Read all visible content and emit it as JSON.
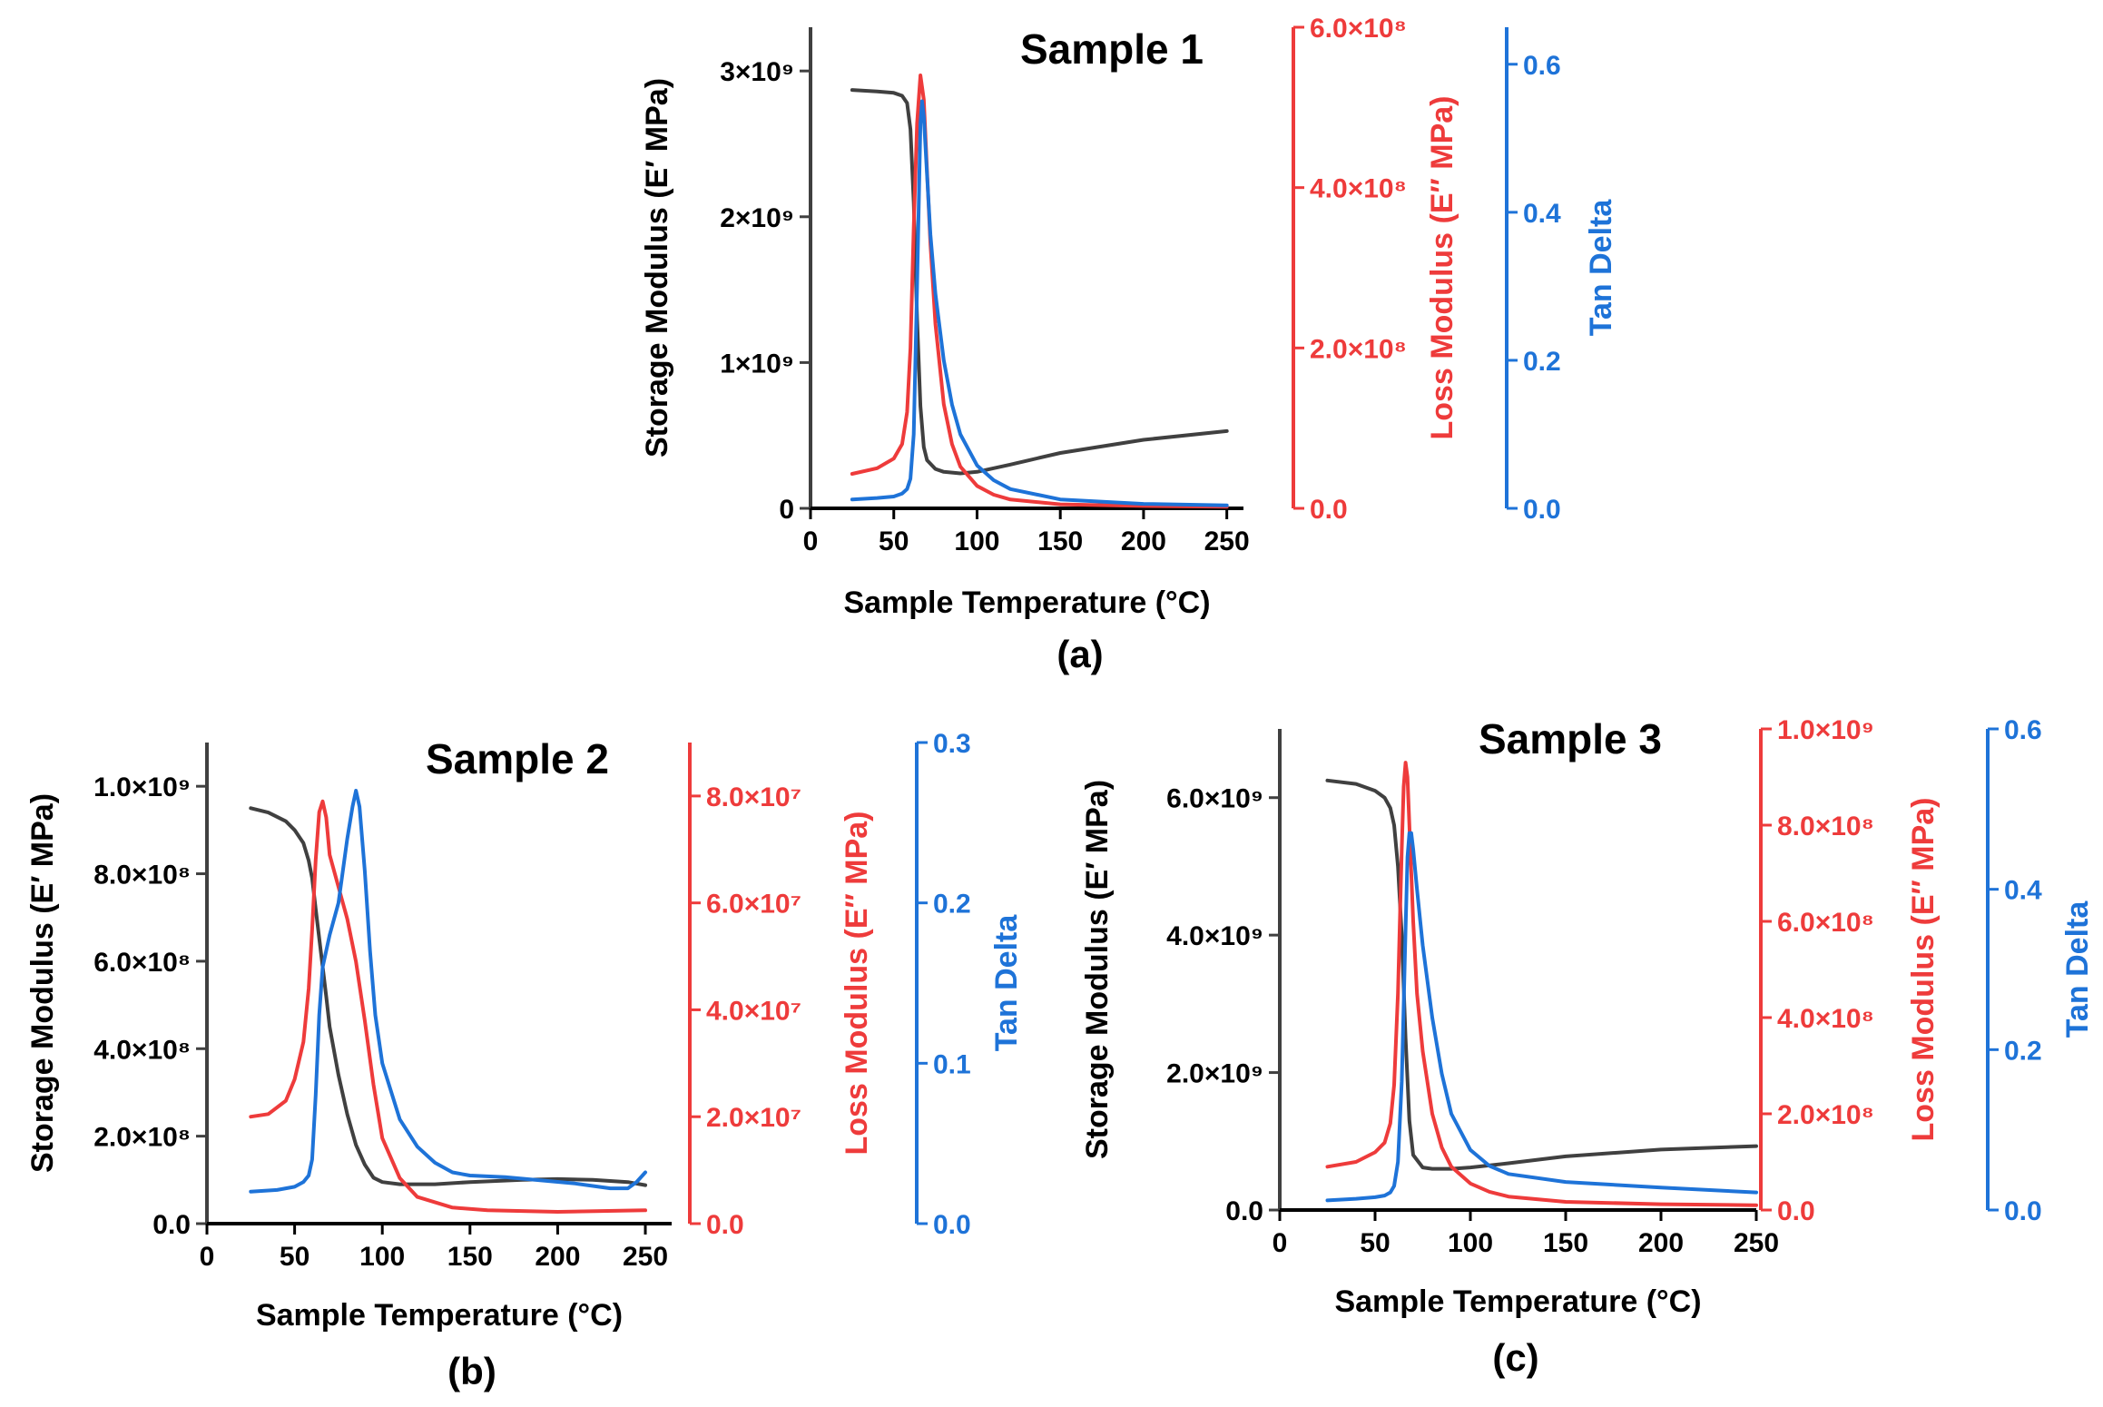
{
  "colors": {
    "storage": "#404040",
    "loss": "#ee3b3b",
    "tan": "#1e73d8",
    "axis_left": "#404040"
  },
  "chart_data": [
    {
      "type": "line",
      "title": "Sample 1",
      "panel_label": "(a)",
      "xlabel": "Sample Temperature (°C)",
      "xlim": [
        0,
        260
      ],
      "xticks": [
        "0",
        "50",
        "100",
        "150",
        "200",
        "250"
      ],
      "y_left": {
        "label": "Storage Modulus (E′ MPa)",
        "lim": [
          0,
          3300000000.0
        ],
        "ticks": [
          0,
          1000000000.0,
          2000000000.0,
          3000000000.0
        ],
        "tick_labels": [
          "0",
          "1×10⁹",
          "2×10⁹",
          "3×10⁹"
        ]
      },
      "y_right1": {
        "label": "Loss Modulus (E″ MPa)",
        "lim": [
          0,
          600000000.0
        ],
        "ticks": [
          0,
          200000000.0,
          400000000.0,
          600000000.0
        ],
        "tick_labels": [
          "0.0",
          "2.0×10⁸",
          "4.0×10⁸",
          "6.0×10⁸"
        ]
      },
      "y_right2": {
        "label": "Tan Delta",
        "lim": [
          0,
          0.65
        ],
        "ticks": [
          0,
          0.2,
          0.4,
          0.6
        ],
        "tick_labels": [
          "0.0",
          "0.2",
          "0.4",
          "0.6"
        ]
      },
      "series": [
        {
          "axis": "left",
          "color": "#404040",
          "x": [
            25,
            40,
            50,
            55,
            58,
            60,
            62,
            64,
            66,
            68,
            70,
            75,
            80,
            90,
            100,
            120,
            150,
            200,
            250
          ],
          "y": [
            2870000000.0,
            2860000000.0,
            2850000000.0,
            2830000000.0,
            2780000000.0,
            2600000000.0,
            2100000000.0,
            1300000000.0,
            700000000.0,
            420000000.0,
            330000000.0,
            270000000.0,
            250000000.0,
            240000000.0,
            250000000.0,
            300000000.0,
            380000000.0,
            470000000.0,
            530000000.0
          ]
        },
        {
          "axis": "right1",
          "color": "#ee3b3b",
          "x": [
            25,
            40,
            50,
            55,
            58,
            60,
            62,
            64,
            66,
            68,
            70,
            72,
            75,
            80,
            85,
            90,
            100,
            110,
            120,
            150,
            200,
            250
          ],
          "y": [
            43000000.0,
            50000000.0,
            62000000.0,
            80000000.0,
            120000000.0,
            200000000.0,
            350000000.0,
            480000000.0,
            540000000.0,
            510000000.0,
            420000000.0,
            330000000.0,
            230000000.0,
            130000000.0,
            80000000.0,
            52000000.0,
            28000000.0,
            17000000.0,
            11000000.0,
            5000000.0,
            3000000.0,
            2000000.0
          ]
        },
        {
          "axis": "right2",
          "color": "#1e73d8",
          "x": [
            25,
            40,
            50,
            55,
            58,
            60,
            62,
            64,
            66,
            67,
            68,
            70,
            72,
            75,
            80,
            85,
            90,
            100,
            110,
            120,
            150,
            200,
            250
          ],
          "y": [
            0.012,
            0.014,
            0.016,
            0.02,
            0.026,
            0.04,
            0.1,
            0.3,
            0.52,
            0.55,
            0.53,
            0.45,
            0.37,
            0.29,
            0.2,
            0.14,
            0.1,
            0.058,
            0.038,
            0.026,
            0.012,
            0.006,
            0.004
          ]
        }
      ]
    },
    {
      "type": "line",
      "title": "Sample 2",
      "panel_label": "(b)",
      "xlabel": "Sample Temperature (°C)",
      "xlim": [
        0,
        265
      ],
      "xticks": [
        "0",
        "50",
        "100",
        "150",
        "200",
        "250"
      ],
      "y_left": {
        "label": "Storage Modulus (E′ MPa)",
        "lim": [
          0,
          1100000000.0
        ],
        "ticks": [
          0,
          200000000.0,
          400000000.0,
          600000000.0,
          800000000.0,
          1000000000.0
        ],
        "tick_labels": [
          "0.0",
          "2.0×10⁸",
          "4.0×10⁸",
          "6.0×10⁸",
          "8.0×10⁸",
          "1.0×10⁹"
        ]
      },
      "y_right1": {
        "label": "Loss Modulus (E″ MPa)",
        "lim": [
          0,
          90000000.0
        ],
        "ticks": [
          0,
          20000000.0,
          40000000.0,
          60000000.0,
          80000000.0
        ],
        "tick_labels": [
          "0.0",
          "2.0×10⁷",
          "4.0×10⁷",
          "6.0×10⁷",
          "8.0×10⁷"
        ]
      },
      "y_right2": {
        "label": "Tan Delta",
        "lim": [
          0,
          0.3
        ],
        "ticks": [
          0,
          0.1,
          0.2,
          0.3
        ],
        "tick_labels": [
          "0.0",
          "0.1",
          "0.2",
          "0.3"
        ]
      },
      "series": [
        {
          "axis": "left",
          "color": "#404040",
          "x": [
            25,
            35,
            45,
            50,
            55,
            58,
            60,
            62,
            65,
            68,
            70,
            75,
            80,
            85,
            90,
            95,
            100,
            110,
            130,
            150,
            180,
            200,
            220,
            240,
            250
          ],
          "y": [
            950000000.0,
            940000000.0,
            920000000.0,
            900000000.0,
            870000000.0,
            830000000.0,
            790000000.0,
            720000000.0,
            620000000.0,
            520000000.0,
            450000000.0,
            340000000.0,
            250000000.0,
            180000000.0,
            135000000.0,
            105000000.0,
            95000000.0,
            90000000.0,
            90000000.0,
            95000000.0,
            100000000.0,
            102000000.0,
            100000000.0,
            95000000.0,
            88000000.0
          ]
        },
        {
          "axis": "right1",
          "color": "#ee3b3b",
          "x": [
            25,
            35,
            45,
            50,
            55,
            58,
            60,
            62,
            64,
            66,
            68,
            70,
            75,
            80,
            85,
            90,
            95,
            100,
            110,
            120,
            140,
            160,
            200,
            250
          ],
          "y": [
            20000000.0,
            20500000.0,
            23000000.0,
            27000000.0,
            34000000.0,
            44000000.0,
            55000000.0,
            68000000.0,
            77000000.0,
            79000000.0,
            76000000.0,
            69000000.0,
            63000000.0,
            57000000.0,
            49000000.0,
            38000000.0,
            26000000.0,
            16000000.0,
            8500000.0,
            5000000.0,
            3000000.0,
            2500000.0,
            2200000.0,
            2500000.0
          ]
        },
        {
          "axis": "right2",
          "color": "#1e73d8",
          "x": [
            25,
            40,
            50,
            55,
            58,
            60,
            62,
            64,
            66,
            70,
            75,
            80,
            83,
            85,
            87,
            90,
            93,
            96,
            100,
            110,
            120,
            130,
            140,
            150,
            170,
            190,
            210,
            230,
            240,
            245,
            250
          ],
          "y": [
            0.02,
            0.021,
            0.023,
            0.026,
            0.03,
            0.04,
            0.08,
            0.13,
            0.16,
            0.18,
            0.2,
            0.24,
            0.26,
            0.27,
            0.26,
            0.22,
            0.17,
            0.13,
            0.1,
            0.065,
            0.048,
            0.038,
            0.032,
            0.03,
            0.029,
            0.027,
            0.025,
            0.022,
            0.022,
            0.026,
            0.032
          ]
        }
      ]
    },
    {
      "type": "line",
      "title": "Sample 3",
      "panel_label": "(c)",
      "xlabel": "Sample Temperature (°C)",
      "xlim": [
        0,
        250
      ],
      "xticks": [
        "0",
        "50",
        "100",
        "150",
        "200",
        "250"
      ],
      "y_left": {
        "label": "Storage Modulus (E′ MPa)",
        "lim": [
          0,
          7000000000.0
        ],
        "ticks": [
          0,
          2000000000.0,
          4000000000.0,
          6000000000.0
        ],
        "tick_labels": [
          "0.0",
          "2.0×10⁹",
          "4.0×10⁹",
          "6.0×10⁹"
        ]
      },
      "y_right1": {
        "label": "Loss Modulus (E″ MPa)",
        "lim": [
          0,
          1000000000.0
        ],
        "ticks": [
          0,
          200000000.0,
          400000000.0,
          600000000.0,
          800000000.0,
          1000000000.0
        ],
        "tick_labels": [
          "0.0",
          "2.0×10⁸",
          "4.0×10⁸",
          "6.0×10⁸",
          "8.0×10⁸",
          "1.0×10⁹"
        ]
      },
      "y_right2": {
        "label": "Tan Delta",
        "lim": [
          0,
          0.6
        ],
        "ticks": [
          0,
          0.2,
          0.4,
          0.6
        ],
        "tick_labels": [
          "0.0",
          "0.2",
          "0.4",
          "0.6"
        ]
      },
      "series": [
        {
          "axis": "left",
          "color": "#404040",
          "x": [
            25,
            40,
            50,
            55,
            58,
            60,
            62,
            64,
            66,
            68,
            70,
            75,
            80,
            90,
            100,
            120,
            150,
            200,
            250
          ],
          "y": [
            6250000000.0,
            6200000000.0,
            6100000000.0,
            6000000000.0,
            5850000000.0,
            5600000000.0,
            5000000000.0,
            4000000000.0,
            2500000000.0,
            1300000000.0,
            800000000.0,
            620000000.0,
            600000000.0,
            600000000.0,
            620000000.0,
            680000000.0,
            780000000.0,
            880000000.0,
            930000000.0
          ]
        },
        {
          "axis": "right1",
          "color": "#ee3b3b",
          "x": [
            25,
            40,
            50,
            55,
            58,
            60,
            62,
            64,
            65,
            66,
            67,
            68,
            70,
            72,
            75,
            80,
            85,
            90,
            100,
            110,
            120,
            150,
            200,
            250
          ],
          "y": [
            90000000.0,
            100000000.0,
            120000000.0,
            140000000.0,
            180000000.0,
            260000000.0,
            450000000.0,
            750000000.0,
            880000000.0,
            930000000.0,
            900000000.0,
            800000000.0,
            600000000.0,
            450000000.0,
            330000000.0,
            200000000.0,
            130000000.0,
            90000000.0,
            55000000.0,
            38000000.0,
            28000000.0,
            17000000.0,
            12000000.0,
            10000000.0
          ]
        },
        {
          "axis": "right2",
          "color": "#1e73d8",
          "x": [
            25,
            40,
            50,
            55,
            58,
            60,
            62,
            64,
            66,
            67,
            68,
            69,
            70,
            72,
            75,
            80,
            85,
            90,
            100,
            110,
            120,
            150,
            200,
            250
          ],
          "y": [
            0.012,
            0.014,
            0.016,
            0.018,
            0.022,
            0.03,
            0.06,
            0.16,
            0.35,
            0.44,
            0.47,
            0.47,
            0.45,
            0.4,
            0.33,
            0.24,
            0.17,
            0.12,
            0.075,
            0.055,
            0.045,
            0.035,
            0.028,
            0.022
          ]
        }
      ]
    }
  ]
}
